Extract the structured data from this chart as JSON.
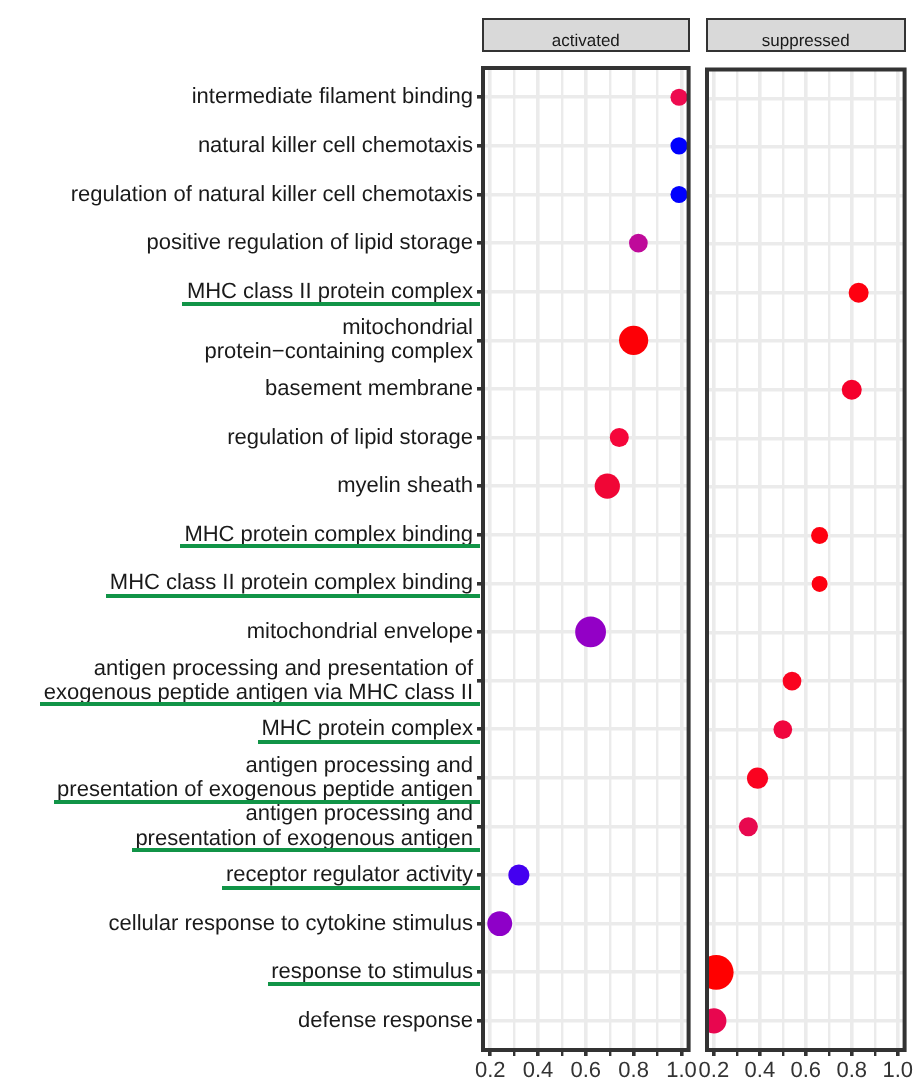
{
  "chart_data": [
    {
      "type": "bubble",
      "title": "activated",
      "orientation": "horizontal",
      "categories": [
        "intermediate filament binding",
        "natural killer cell chemotaxis",
        "regulation of natural killer cell chemotaxis",
        "positive regulation of lipid storage",
        "MHC class II protein complex",
        "mitochondrial\nprotein−containing complex",
        "basement membrane",
        "regulation of lipid storage",
        "myelin sheath",
        "MHC protein complex binding",
        "MHC class II protein complex binding",
        "mitochondrial envelope",
        "antigen processing and presentation of\nexogenous peptide antigen via MHC class II",
        "MHC protein complex",
        "antigen processing and\npresentation of exogenous peptide antigen",
        "antigen processing and\npresentation of exogenous antigen",
        "receptor regulator activity",
        "cellular response to cytokine stimulus",
        "response to stimulus",
        "defense response"
      ],
      "values": [
        0.99,
        0.99,
        0.99,
        0.82,
        null,
        0.8,
        null,
        0.74,
        0.69,
        null,
        null,
        0.62,
        null,
        null,
        null,
        null,
        0.32,
        0.24,
        null,
        null
      ],
      "sizes": [
        0.31,
        0.31,
        0.31,
        0.37,
        null,
        0.9,
        null,
        0.38,
        0.67,
        null,
        null,
        1,
        null,
        null,
        null,
        null,
        0.47,
        0.65,
        null,
        null
      ],
      "colors": [
        "#ee0b4f",
        "#0000fe",
        "#0000fe",
        "#bf0a9a",
        null,
        "#fd0006",
        null,
        "#f5063a",
        "#f00636",
        null,
        null,
        "#9300c6",
        null,
        null,
        null,
        null,
        "#4400f0",
        "#8e00c8",
        null,
        null
      ],
      "xlim": [
        0.17,
        1.03
      ],
      "xticks": [
        0.2,
        {
          "value": 0.3,
          "label": null
        },
        0.4,
        {
          "value": 0.5,
          "label": null
        },
        0.6,
        {
          "value": 0.7,
          "label": null
        },
        0.8,
        {
          "value": 0.9,
          "label": null
        },
        {
          "value": 1,
          "label": "1.0"
        }
      ],
      "grid": true
    },
    {
      "type": "bubble",
      "title": "suppressed",
      "orientation": "horizontal",
      "categories": [
        null,
        null,
        null,
        null,
        null,
        null,
        null,
        null,
        null,
        null,
        null,
        null,
        null,
        null,
        null,
        null,
        null,
        null,
        null,
        null
      ],
      "values": [
        null,
        null,
        null,
        null,
        0.83,
        null,
        0.8,
        null,
        null,
        0.66,
        0.66,
        null,
        0.54,
        0.5,
        0.39,
        0.35,
        null,
        null,
        0.21,
        0.2
      ],
      "sizes": [
        null,
        null,
        null,
        null,
        0.33,
        null,
        0.33,
        null,
        null,
        0.24,
        0.21,
        null,
        0.29,
        0.29,
        0.37,
        0.3,
        null,
        null,
        1,
        0.52
      ],
      "colors": [
        null,
        null,
        null,
        null,
        "#fe0010",
        null,
        "#f5002b",
        null,
        null,
        "#fe0010",
        "#fe0010",
        null,
        "#fa0320",
        "#f0063e",
        "#fa0320",
        "#e8084f",
        null,
        null,
        "#ff0000",
        "#e8064f"
      ],
      "xlim": [
        0.17,
        1.03
      ],
      "xticks": [
        0.2,
        {
          "value": 0.3,
          "label": null
        },
        0.4,
        {
          "value": 0.5,
          "label": null
        },
        0.6,
        {
          "value": 0.7,
          "label": null
        },
        0.8,
        {
          "value": 0.9,
          "label": null
        },
        {
          "value": 1,
          "label": "1.0"
        }
      ],
      "grid": true,
      "tick_labels": "x"
    }
  ]
}
